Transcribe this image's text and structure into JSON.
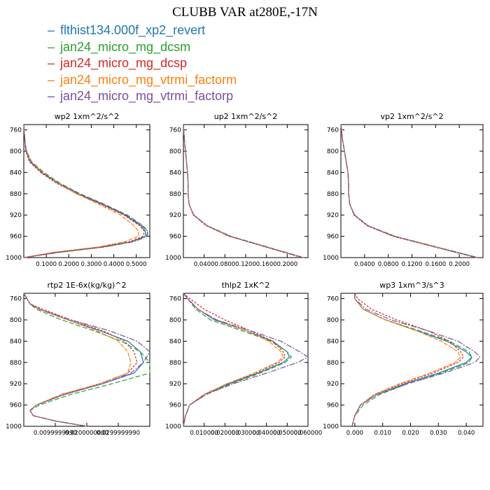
{
  "figure": {
    "title": "CLUBB VAR at280E,-17N",
    "legend": [
      {
        "label": "flthist134.000f_xp2_revert",
        "color": "#1f77b4"
      },
      {
        "label": "jan24_micro_mg_dcsm",
        "color": "#2ca02c"
      },
      {
        "label": "jan24_micro_mg_dcsp",
        "color": "#d62728"
      },
      {
        "label": "jan24_micro_mg_vtrmi_factorm",
        "color": "#ff7f0e"
      },
      {
        "label": "jan24_micro_mg_vtrmi_factorp",
        "color": "#7b4ea0"
      }
    ]
  },
  "chart_data": [
    {
      "type": "line",
      "title": "wp2  1xm^2/s^2",
      "ylim": [
        1000,
        750
      ],
      "xlim": [
        0,
        0.56
      ],
      "yticks": [
        "760",
        "800",
        "840",
        "880",
        "920",
        "960",
        "1000"
      ],
      "xticks": [
        {
          "v": 0.1,
          "label": "0.1000"
        },
        {
          "v": 0.2,
          "label": "0.2000"
        },
        {
          "v": 0.3,
          "label": "0.3000"
        },
        {
          "v": 0.4,
          "label": "0.4000"
        },
        {
          "v": 0.5,
          "label": "0.5000"
        }
      ],
      "y": [
        750,
        780,
        800,
        820,
        840,
        860,
        880,
        900,
        920,
        940,
        950,
        960,
        970,
        980,
        990,
        1000
      ],
      "series": [
        {
          "name": "flthist134.000f_xp2_revert",
          "values": [
            0.0,
            0.005,
            0.01,
            0.03,
            0.08,
            0.15,
            0.24,
            0.35,
            0.45,
            0.52,
            0.54,
            0.54,
            0.48,
            0.35,
            0.15,
            0.0
          ]
        },
        {
          "name": "jan24_micro_mg_dcsm",
          "values": [
            0.0,
            0.005,
            0.012,
            0.035,
            0.09,
            0.16,
            0.25,
            0.36,
            0.46,
            0.53,
            0.55,
            0.545,
            0.48,
            0.36,
            0.16,
            0.0
          ]
        },
        {
          "name": "jan24_micro_mg_dcsp",
          "values": [
            0.0,
            0.004,
            0.008,
            0.025,
            0.075,
            0.145,
            0.235,
            0.345,
            0.445,
            0.515,
            0.535,
            0.53,
            0.47,
            0.34,
            0.14,
            0.0
          ]
        },
        {
          "name": "jan24_micro_mg_vtrmi_factorm",
          "values": [
            0.0,
            0.005,
            0.011,
            0.032,
            0.085,
            0.15,
            0.235,
            0.335,
            0.43,
            0.49,
            0.51,
            0.51,
            0.45,
            0.33,
            0.13,
            0.0
          ]
        },
        {
          "name": "jan24_micro_mg_vtrmi_factorp",
          "values": [
            0.0,
            0.005,
            0.01,
            0.03,
            0.08,
            0.155,
            0.245,
            0.355,
            0.455,
            0.525,
            0.55,
            0.55,
            0.49,
            0.36,
            0.16,
            0.0
          ]
        }
      ]
    },
    {
      "type": "line",
      "title": "up2  1xm^2/s^2",
      "ylim": [
        1000,
        750
      ],
      "xlim": [
        0,
        0.24
      ],
      "yticks": [
        "760",
        "800",
        "840",
        "880",
        "920",
        "960",
        "1000"
      ],
      "xticks": [
        {
          "v": 0.04,
          "label": "0.0400"
        },
        {
          "v": 0.08,
          "label": "0.0800"
        },
        {
          "v": 0.12,
          "label": "0.1200"
        },
        {
          "v": 0.16,
          "label": "0.1600"
        },
        {
          "v": 0.2,
          "label": "0.2000"
        }
      ],
      "y": [
        750,
        780,
        800,
        820,
        840,
        860,
        880,
        900,
        920,
        940,
        960,
        980,
        1000
      ],
      "series": [
        {
          "name": "flthist134.000f_xp2_revert",
          "values": [
            0.0,
            0.002,
            0.004,
            0.006,
            0.008,
            0.009,
            0.009,
            0.011,
            0.02,
            0.045,
            0.09,
            0.16,
            0.23
          ]
        },
        {
          "name": "jan24_micro_mg_dcsm",
          "values": [
            0.0,
            0.002,
            0.004,
            0.006,
            0.008,
            0.009,
            0.009,
            0.011,
            0.02,
            0.046,
            0.092,
            0.162,
            0.232
          ]
        },
        {
          "name": "jan24_micro_mg_dcsp",
          "values": [
            0.0,
            0.002,
            0.004,
            0.006,
            0.008,
            0.009,
            0.009,
            0.011,
            0.019,
            0.044,
            0.088,
            0.158,
            0.228
          ]
        },
        {
          "name": "jan24_micro_mg_vtrmi_factorm",
          "values": [
            0.0,
            0.002,
            0.004,
            0.006,
            0.008,
            0.009,
            0.009,
            0.011,
            0.02,
            0.045,
            0.09,
            0.16,
            0.23
          ]
        },
        {
          "name": "jan24_micro_mg_vtrmi_factorp",
          "values": [
            0.0,
            0.002,
            0.004,
            0.006,
            0.008,
            0.009,
            0.009,
            0.011,
            0.02,
            0.045,
            0.09,
            0.16,
            0.23
          ]
        }
      ]
    },
    {
      "type": "line",
      "title": "vp2  1xm^2/s^2",
      "ylim": [
        1000,
        750
      ],
      "xlim": [
        0,
        0.24
      ],
      "yticks": [
        "760",
        "800",
        "840",
        "880",
        "920",
        "960",
        "1000"
      ],
      "xticks": [
        {
          "v": 0.04,
          "label": "0.0400"
        },
        {
          "v": 0.08,
          "label": "0.0800"
        },
        {
          "v": 0.12,
          "label": "0.1200"
        },
        {
          "v": 0.16,
          "label": "0.1600"
        },
        {
          "v": 0.2,
          "label": "0.2000"
        }
      ],
      "y": [
        750,
        780,
        800,
        820,
        840,
        860,
        880,
        900,
        920,
        940,
        960,
        980,
        1000
      ],
      "series": [
        {
          "name": "flthist134.000f_xp2_revert",
          "values": [
            0.0,
            0.003,
            0.006,
            0.009,
            0.012,
            0.013,
            0.013,
            0.015,
            0.023,
            0.045,
            0.09,
            0.16,
            0.23
          ]
        },
        {
          "name": "jan24_micro_mg_dcsm",
          "values": [
            0.0,
            0.003,
            0.006,
            0.009,
            0.012,
            0.013,
            0.013,
            0.015,
            0.023,
            0.046,
            0.092,
            0.162,
            0.232
          ]
        },
        {
          "name": "jan24_micro_mg_dcsp",
          "values": [
            0.0,
            0.003,
            0.006,
            0.009,
            0.012,
            0.013,
            0.013,
            0.015,
            0.022,
            0.044,
            0.088,
            0.158,
            0.228
          ]
        },
        {
          "name": "jan24_micro_mg_vtrmi_factorm",
          "values": [
            0.0,
            0.003,
            0.006,
            0.009,
            0.012,
            0.013,
            0.013,
            0.015,
            0.023,
            0.045,
            0.09,
            0.16,
            0.23
          ]
        },
        {
          "name": "jan24_micro_mg_vtrmi_factorp",
          "values": [
            0.0,
            0.003,
            0.006,
            0.009,
            0.012,
            0.013,
            0.013,
            0.015,
            0.023,
            0.045,
            0.09,
            0.16,
            0.23
          ]
        }
      ]
    },
    {
      "type": "line",
      "title": "rtp2  1E-6x(kg/kg)^2",
      "ylim": [
        1000,
        750
      ],
      "xlim": [
        0,
        0.04
      ],
      "yticks": [
        "760",
        "800",
        "840",
        "880",
        "920",
        "960",
        "1000"
      ],
      "xticks": [
        {
          "v": 0.01,
          "label": "0.0099999990"
        },
        {
          "v": 0.02,
          "label": "0.0200000000"
        },
        {
          "v": 0.03,
          "label": "0.0299999990"
        }
      ],
      "y": [
        750,
        760,
        770,
        780,
        800,
        820,
        840,
        860,
        880,
        900,
        920,
        940,
        960,
        970,
        980,
        990,
        1000
      ],
      "series": [
        {
          "name": "flthist134.000f_xp2_revert",
          "values": [
            0.0,
            0.001,
            0.002,
            0.005,
            0.014,
            0.024,
            0.033,
            0.037,
            0.038,
            0.035,
            0.025,
            0.013,
            0.004,
            0.002,
            0.003,
            0.01,
            0.02
          ]
        },
        {
          "name": "jan24_micro_mg_dcsm",
          "values": [
            0.0,
            0.001,
            0.002,
            0.004,
            0.012,
            0.022,
            0.031,
            0.037,
            0.04,
            0.04,
            0.028,
            0.015,
            0.005,
            0.002,
            0.003,
            0.01,
            0.02
          ]
        },
        {
          "name": "jan24_micro_mg_dcsp",
          "values": [
            0.0,
            0.001,
            0.002,
            0.006,
            0.015,
            0.025,
            0.032,
            0.035,
            0.036,
            0.033,
            0.024,
            0.012,
            0.004,
            0.002,
            0.003,
            0.01,
            0.02
          ]
        },
        {
          "name": "jan24_micro_mg_vtrmi_factorm",
          "values": [
            0.0,
            0.001,
            0.002,
            0.005,
            0.014,
            0.023,
            0.03,
            0.033,
            0.034,
            0.033,
            0.024,
            0.012,
            0.004,
            0.002,
            0.003,
            0.01,
            0.02
          ]
        },
        {
          "name": "jan24_micro_mg_vtrmi_factorp",
          "values": [
            0.0,
            0.001,
            0.002,
            0.005,
            0.015,
            0.027,
            0.036,
            0.04,
            0.038,
            0.034,
            0.025,
            0.013,
            0.004,
            0.002,
            0.003,
            0.01,
            0.02
          ]
        }
      ]
    },
    {
      "type": "line",
      "title": "thlp2  1xK^2",
      "ylim": [
        1000,
        750
      ],
      "xlim": [
        0,
        0.06
      ],
      "yticks": [
        "760",
        "800",
        "840",
        "880",
        "920",
        "960",
        "1000"
      ],
      "xticks": [
        {
          "v": 0.01,
          "label": "0.010000"
        },
        {
          "v": 0.02,
          "label": "0.020000"
        },
        {
          "v": 0.03,
          "label": "0.030000"
        },
        {
          "v": 0.04,
          "label": "0.040000"
        },
        {
          "v": 0.05,
          "label": "0.050000"
        },
        {
          "v": 0.06,
          "label": "0.060000"
        }
      ],
      "y": [
        750,
        760,
        780,
        800,
        820,
        840,
        860,
        870,
        880,
        900,
        920,
        940,
        960,
        980,
        1000
      ],
      "series": [
        {
          "name": "flthist134.000f_xp2_revert",
          "values": [
            0.0,
            0.002,
            0.007,
            0.015,
            0.03,
            0.043,
            0.05,
            0.051,
            0.048,
            0.036,
            0.022,
            0.01,
            0.003,
            0.001,
            0.0
          ]
        },
        {
          "name": "jan24_micro_mg_dcsm",
          "values": [
            0.0,
            0.002,
            0.006,
            0.013,
            0.028,
            0.042,
            0.05,
            0.052,
            0.049,
            0.037,
            0.023,
            0.011,
            0.003,
            0.001,
            0.0
          ]
        },
        {
          "name": "jan24_micro_mg_dcsp",
          "values": [
            0.0,
            0.003,
            0.01,
            0.02,
            0.032,
            0.043,
            0.048,
            0.049,
            0.046,
            0.035,
            0.021,
            0.01,
            0.003,
            0.001,
            0.0
          ]
        },
        {
          "name": "jan24_micro_mg_vtrmi_factorm",
          "values": [
            0.0,
            0.002,
            0.007,
            0.016,
            0.03,
            0.041,
            0.047,
            0.048,
            0.045,
            0.034,
            0.021,
            0.01,
            0.003,
            0.001,
            0.0
          ]
        },
        {
          "name": "jan24_micro_mg_vtrmi_factorp",
          "values": [
            0.0,
            0.002,
            0.007,
            0.016,
            0.032,
            0.047,
            0.056,
            0.06,
            0.055,
            0.04,
            0.024,
            0.011,
            0.003,
            0.001,
            0.0
          ]
        }
      ]
    },
    {
      "type": "line",
      "title": "wp3  1xm^3/s^3",
      "ylim": [
        1000,
        750
      ],
      "xlim": [
        -0.005,
        0.046
      ],
      "yticks": [
        "760",
        "800",
        "840",
        "880",
        "920",
        "960",
        "1000"
      ],
      "xticks": [
        {
          "v": 0.0,
          "label": "0.000"
        },
        {
          "v": 0.01,
          "label": "0.010"
        },
        {
          "v": 0.02,
          "label": "0.020"
        },
        {
          "v": 0.03,
          "label": "0.030"
        },
        {
          "v": 0.04,
          "label": "0.040"
        }
      ],
      "y": [
        750,
        760,
        780,
        800,
        820,
        840,
        860,
        870,
        880,
        900,
        920,
        940,
        960,
        980,
        1000
      ],
      "series": [
        {
          "name": "flthist134.000f_xp2_revert",
          "values": [
            0.0,
            0.0,
            0.003,
            0.011,
            0.022,
            0.033,
            0.04,
            0.042,
            0.04,
            0.03,
            0.018,
            0.008,
            0.002,
            0.0,
            -0.001
          ]
        },
        {
          "name": "jan24_micro_mg_dcsm",
          "values": [
            0.0,
            0.0,
            0.003,
            0.011,
            0.023,
            0.034,
            0.041,
            0.042,
            0.041,
            0.031,
            0.019,
            0.009,
            0.003,
            0.0,
            -0.001
          ]
        },
        {
          "name": "jan24_micro_mg_dcsp",
          "values": [
            0.0,
            0.001,
            0.006,
            0.015,
            0.026,
            0.034,
            0.038,
            0.039,
            0.037,
            0.028,
            0.017,
            0.007,
            0.002,
            0.0,
            -0.001
          ]
        },
        {
          "name": "jan24_micro_mg_vtrmi_factorm",
          "values": [
            0.0,
            0.0,
            0.003,
            0.011,
            0.022,
            0.031,
            0.037,
            0.038,
            0.036,
            0.027,
            0.016,
            0.007,
            0.002,
            0.0,
            -0.001
          ]
        },
        {
          "name": "jan24_micro_mg_vtrmi_factorp",
          "values": [
            0.0,
            0.0,
            0.004,
            0.013,
            0.026,
            0.037,
            0.043,
            0.045,
            0.043,
            0.032,
            0.019,
            0.008,
            0.002,
            0.0,
            -0.001
          ]
        }
      ]
    }
  ]
}
